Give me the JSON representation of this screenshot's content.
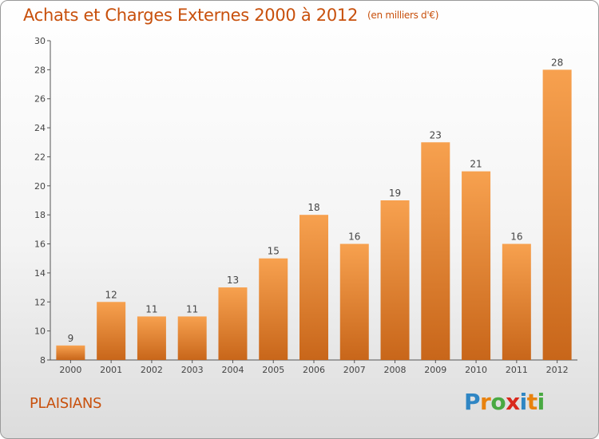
{
  "header": {
    "title": "Achats et Charges Externes 2000 à 2012",
    "unit": "(en milliers d'€)"
  },
  "commune": "PLAISIANS",
  "logo": {
    "text": "Proxiti",
    "letters": [
      {
        "ch": "P",
        "color": "#2f86c4"
      },
      {
        "ch": "r",
        "color": "#e8820e"
      },
      {
        "ch": "o",
        "color": "#49a942"
      },
      {
        "ch": "x",
        "color": "#d9281c"
      },
      {
        "ch": "i",
        "color": "#2f86c4"
      },
      {
        "ch": "t",
        "color": "#e8820e"
      },
      {
        "ch": "i",
        "color": "#49a942"
      }
    ]
  },
  "chart_data": {
    "type": "bar",
    "title": "Achats et Charges Externes 2000 à 2012",
    "unit": "(en milliers d'€)",
    "categories": [
      "2000",
      "2001",
      "2002",
      "2003",
      "2004",
      "2005",
      "2006",
      "2007",
      "2008",
      "2009",
      "2010",
      "2011",
      "2012"
    ],
    "values": [
      9,
      12,
      11,
      11,
      13,
      15,
      18,
      16,
      19,
      23,
      21,
      16,
      28
    ],
    "ylim": [
      8,
      30
    ],
    "yticks": [
      8,
      10,
      12,
      14,
      16,
      18,
      20,
      22,
      24,
      26,
      28,
      30
    ],
    "grid": false,
    "bar_color_top": "#f7a14f",
    "bar_color_bottom": "#c8661a"
  }
}
